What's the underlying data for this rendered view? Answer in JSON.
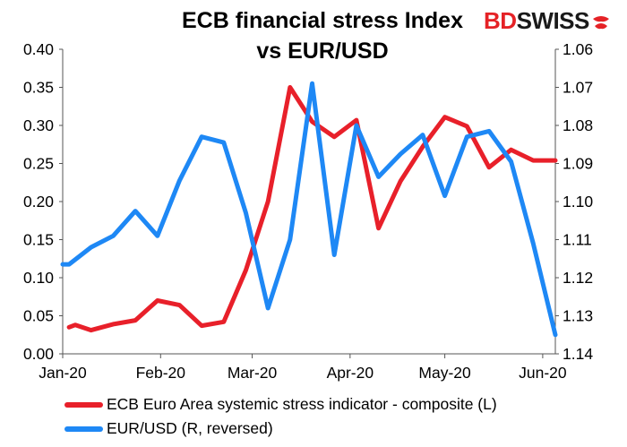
{
  "title_line1": "ECB financial stress Index",
  "title_line2": "vs EUR/USD",
  "logo": {
    "part1": "BD",
    "part2": "SWISS"
  },
  "colors": {
    "ecb": "#e8202a",
    "eurusd": "#1e88f5",
    "logo_red": "#e52226"
  },
  "chart_data": {
    "type": "line",
    "x_ticks": [
      "Jan-20",
      "Feb-20",
      "Mar-20",
      "Apr-20",
      "May-20",
      "Jun-20"
    ],
    "x_range": [
      "2020-01-01",
      "2020-06-05"
    ],
    "left_axis": {
      "min": 0,
      "max": 0.4,
      "ticks": [
        "0.00",
        "0.05",
        "0.10",
        "0.15",
        "0.20",
        "0.25",
        "0.30",
        "0.35",
        "0.40"
      ]
    },
    "right_axis": {
      "min": 1.06,
      "max": 1.14,
      "reversed": true,
      "ticks": [
        "1.06",
        "1.07",
        "1.08",
        "1.09",
        "1.10",
        "1.11",
        "1.12",
        "1.13",
        "1.14"
      ]
    },
    "grid": false,
    "series": [
      {
        "name": "ECB Euro Area systemic stress indicator - composite (L)",
        "axis": "left",
        "color": "#e8202a",
        "points": [
          [
            "2020-01-03",
            0.035
          ],
          [
            "2020-01-05",
            0.038
          ],
          [
            "2020-01-10",
            0.031
          ],
          [
            "2020-01-17",
            0.039
          ],
          [
            "2020-01-24",
            0.044
          ],
          [
            "2020-01-31",
            0.07
          ],
          [
            "2020-02-07",
            0.064
          ],
          [
            "2020-02-14",
            0.037
          ],
          [
            "2020-02-21",
            0.042
          ],
          [
            "2020-02-28",
            0.11
          ],
          [
            "2020-03-06",
            0.2
          ],
          [
            "2020-03-13",
            0.35
          ],
          [
            "2020-03-20",
            0.305
          ],
          [
            "2020-03-27",
            0.285
          ],
          [
            "2020-04-03",
            0.307
          ],
          [
            "2020-04-10",
            0.165
          ],
          [
            "2020-04-17",
            0.227
          ],
          [
            "2020-04-24",
            0.272
          ],
          [
            "2020-05-01",
            0.311
          ],
          [
            "2020-05-08",
            0.299
          ],
          [
            "2020-05-15",
            0.245
          ],
          [
            "2020-05-22",
            0.268
          ],
          [
            "2020-05-29",
            0.254
          ],
          [
            "2020-06-05",
            0.254
          ]
        ]
      },
      {
        "name": "EUR/USD (R, reversed)",
        "axis": "right",
        "color": "#1e88f5",
        "points": [
          [
            "2020-01-01",
            1.1165
          ],
          [
            "2020-01-03",
            1.1165
          ],
          [
            "2020-01-10",
            1.112
          ],
          [
            "2020-01-17",
            1.109
          ],
          [
            "2020-01-24",
            1.1025
          ],
          [
            "2020-01-31",
            1.109
          ],
          [
            "2020-02-07",
            1.0945
          ],
          [
            "2020-02-14",
            1.083
          ],
          [
            "2020-02-21",
            1.0845
          ],
          [
            "2020-02-28",
            1.103
          ],
          [
            "2020-03-06",
            1.128
          ],
          [
            "2020-03-13",
            1.11
          ],
          [
            "2020-03-20",
            1.069
          ],
          [
            "2020-03-27",
            1.114
          ],
          [
            "2020-04-03",
            1.08
          ],
          [
            "2020-04-10",
            1.0935
          ],
          [
            "2020-04-17",
            1.0875
          ],
          [
            "2020-04-24",
            1.0825
          ],
          [
            "2020-05-01",
            1.0985
          ],
          [
            "2020-05-08",
            1.083
          ],
          [
            "2020-05-15",
            1.0815
          ],
          [
            "2020-05-22",
            1.0895
          ],
          [
            "2020-05-29",
            1.111
          ],
          [
            "2020-06-05",
            1.135
          ]
        ]
      }
    ]
  }
}
